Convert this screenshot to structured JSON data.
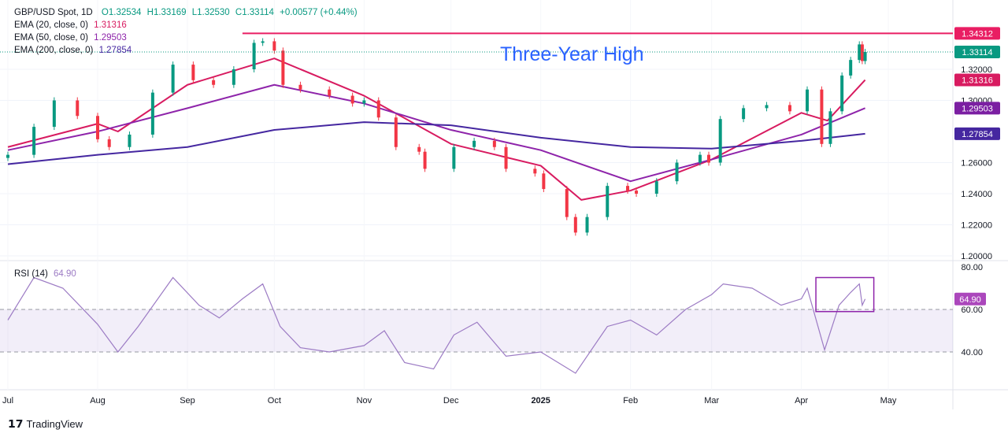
{
  "header": {
    "symbol": "GBP/USD Spot, 1D",
    "open": "O1.32534",
    "high": "H1.33169",
    "low": "L1.32530",
    "close": "C1.33114",
    "change": "+0.00577 (+0.44%)",
    "ema20_label": "EMA (20, close, 0)",
    "ema20_value": "1.31316",
    "ema50_label": "EMA (50, close, 0)",
    "ema50_value": "1.29503",
    "ema200_label": "EMA (200, close, 0)",
    "ema200_value": "1.27854",
    "rsi_label": "RSI (14)",
    "rsi_value": "64.90"
  },
  "annotation": "Three-Year High",
  "footer": {
    "brand": "TradingView"
  },
  "colors": {
    "up": "#089981",
    "down": "#f23645",
    "ema20": "#d81b60",
    "ema50": "#8e24aa",
    "ema200": "#4527a0",
    "resistance": "#e91e63",
    "annotation": "#2962ff",
    "rsi": "#9c7bc4"
  },
  "chart_data": [
    {
      "type": "candlestick",
      "title": "GBP/USD Spot, 1D",
      "ylim": [
        1.195,
        1.35
      ],
      "xlim": [
        "2024-07-01",
        "2025-05-01"
      ],
      "y_ticks": [
        "1.20000",
        "1.22000",
        "1.24000",
        "1.26000",
        "1.30000",
        "1.32000"
      ],
      "x_ticks": [
        {
          "date": "2024-07-01",
          "label": "Jul"
        },
        {
          "date": "2024-08-01",
          "label": "Aug"
        },
        {
          "date": "2024-09-01",
          "label": "Sep"
        },
        {
          "date": "2024-10-01",
          "label": "Oct"
        },
        {
          "date": "2024-11-01",
          "label": "Nov"
        },
        {
          "date": "2024-12-01",
          "label": "Dec"
        },
        {
          "date": "2025-01-01",
          "label": "2025"
        },
        {
          "date": "2025-02-01",
          "label": "Feb"
        },
        {
          "date": "2025-03-01",
          "label": "Mar"
        },
        {
          "date": "2025-04-01",
          "label": "Apr"
        },
        {
          "date": "2025-05-01",
          "label": "May"
        }
      ],
      "closes": [
        [
          "2024-07-01",
          1.265
        ],
        [
          "2024-07-10",
          1.283
        ],
        [
          "2024-07-17",
          1.3
        ],
        [
          "2024-07-25",
          1.29
        ],
        [
          "2024-08-01",
          1.275
        ],
        [
          "2024-08-05",
          1.27
        ],
        [
          "2024-08-12",
          1.278
        ],
        [
          "2024-08-20",
          1.305
        ],
        [
          "2024-08-27",
          1.323
        ],
        [
          "2024-09-03",
          1.313
        ],
        [
          "2024-09-10",
          1.31
        ],
        [
          "2024-09-17",
          1.32
        ],
        [
          "2024-09-24",
          1.337
        ],
        [
          "2024-09-27",
          1.338
        ],
        [
          "2024-10-01",
          1.332
        ],
        [
          "2024-10-04",
          1.31
        ],
        [
          "2024-10-10",
          1.307
        ],
        [
          "2024-10-20",
          1.303
        ],
        [
          "2024-10-28",
          1.298
        ],
        [
          "2024-11-01",
          1.3
        ],
        [
          "2024-11-06",
          1.289
        ],
        [
          "2024-11-12",
          1.27
        ],
        [
          "2024-11-20",
          1.267
        ],
        [
          "2024-11-22",
          1.256
        ],
        [
          "2024-12-02",
          1.27
        ],
        [
          "2024-12-09",
          1.274
        ],
        [
          "2024-12-16",
          1.27
        ],
        [
          "2024-12-20",
          1.256
        ],
        [
          "2024-12-30",
          1.253
        ],
        [
          "2025-01-02",
          1.243
        ],
        [
          "2025-01-10",
          1.225
        ],
        [
          "2025-01-13",
          1.215
        ],
        [
          "2025-01-17",
          1.225
        ],
        [
          "2025-01-24",
          1.245
        ],
        [
          "2025-01-31",
          1.242
        ],
        [
          "2025-02-03",
          1.24
        ],
        [
          "2025-02-10",
          1.248
        ],
        [
          "2025-02-17",
          1.26
        ],
        [
          "2025-02-25",
          1.265
        ],
        [
          "2025-02-28",
          1.26
        ],
        [
          "2025-03-04",
          1.288
        ],
        [
          "2025-03-12",
          1.295
        ],
        [
          "2025-03-20",
          1.297
        ],
        [
          "2025-03-28",
          1.293
        ],
        [
          "2025-04-03",
          1.307
        ],
        [
          "2025-04-08",
          1.272
        ],
        [
          "2025-04-11",
          1.293
        ],
        [
          "2025-04-15",
          1.316
        ],
        [
          "2025-04-18",
          1.326
        ],
        [
          "2025-04-21",
          1.336
        ],
        [
          "2025-04-22",
          1.3253
        ],
        [
          "2025-04-23",
          1.33114
        ]
      ],
      "series": [
        {
          "name": "EMA (20, close, 0)",
          "points": [
            [
              "2024-07-01",
              1.27
            ],
            [
              "2024-08-01",
              1.285
            ],
            [
              "2024-08-08",
              1.28
            ],
            [
              "2024-09-01",
              1.31
            ],
            [
              "2024-10-01",
              1.327
            ],
            [
              "2024-11-01",
              1.303
            ],
            [
              "2024-12-01",
              1.272
            ],
            [
              "2025-01-01",
              1.258
            ],
            [
              "2025-01-15",
              1.236
            ],
            [
              "2025-02-01",
              1.242
            ],
            [
              "2025-03-01",
              1.262
            ],
            [
              "2025-04-01",
              1.292
            ],
            [
              "2025-04-10",
              1.287
            ],
            [
              "2025-04-23",
              1.31316
            ]
          ]
        },
        {
          "name": "EMA (50, close, 0)",
          "points": [
            [
              "2024-07-01",
              1.268
            ],
            [
              "2024-08-01",
              1.28
            ],
            [
              "2024-09-01",
              1.295
            ],
            [
              "2024-10-01",
              1.31
            ],
            [
              "2024-11-01",
              1.298
            ],
            [
              "2024-12-01",
              1.281
            ],
            [
              "2025-01-01",
              1.268
            ],
            [
              "2025-02-01",
              1.248
            ],
            [
              "2025-03-01",
              1.262
            ],
            [
              "2025-04-01",
              1.278
            ],
            [
              "2025-04-23",
              1.29503
            ]
          ]
        },
        {
          "name": "EMA (200, close, 0)",
          "points": [
            [
              "2024-07-01",
              1.259
            ],
            [
              "2024-08-01",
              1.265
            ],
            [
              "2024-09-01",
              1.27
            ],
            [
              "2024-10-01",
              1.281
            ],
            [
              "2024-11-01",
              1.286
            ],
            [
              "2024-12-01",
              1.284
            ],
            [
              "2025-01-01",
              1.276
            ],
            [
              "2025-02-01",
              1.27
            ],
            [
              "2025-03-01",
              1.269
            ],
            [
              "2025-04-01",
              1.274
            ],
            [
              "2025-04-23",
              1.27854
            ]
          ]
        }
      ],
      "resistance": {
        "value": 1.34312,
        "label": "1.34312",
        "from": "2024-09-20"
      },
      "price_labels": [
        {
          "label": "1.33114",
          "value": 1.33114,
          "color": "#089981"
        },
        {
          "label": "1.31316",
          "value": 1.31316,
          "color": "#d81b60"
        },
        {
          "label": "1.29503",
          "value": 1.29503,
          "color": "#7b1fa2"
        },
        {
          "label": "1.27854",
          "value": 1.27854,
          "color": "#4527a0"
        }
      ]
    },
    {
      "type": "line",
      "title": "RSI (14)",
      "ylim": [
        29,
        85
      ],
      "y_ticks": [
        "40.00",
        "60.00",
        "80.00"
      ],
      "band": [
        40,
        60
      ],
      "current": {
        "value": 64.9,
        "label": "64.90"
      },
      "highlight_box": {
        "from": "2025-04-06",
        "to": "2025-04-26",
        "low": 59,
        "high": 75
      },
      "points": [
        [
          "2024-07-01",
          55
        ],
        [
          "2024-07-10",
          75
        ],
        [
          "2024-07-20",
          70
        ],
        [
          "2024-08-01",
          53
        ],
        [
          "2024-08-08",
          40
        ],
        [
          "2024-08-15",
          52
        ],
        [
          "2024-08-27",
          75
        ],
        [
          "2024-09-05",
          62
        ],
        [
          "2024-09-12",
          56
        ],
        [
          "2024-09-20",
          65
        ],
        [
          "2024-09-27",
          72
        ],
        [
          "2024-10-03",
          52
        ],
        [
          "2024-10-10",
          42
        ],
        [
          "2024-10-20",
          40
        ],
        [
          "2024-11-01",
          43
        ],
        [
          "2024-11-08",
          50
        ],
        [
          "2024-11-15",
          35
        ],
        [
          "2024-11-25",
          32
        ],
        [
          "2024-12-02",
          48
        ],
        [
          "2024-12-10",
          54
        ],
        [
          "2024-12-20",
          38
        ],
        [
          "2025-01-01",
          40
        ],
        [
          "2025-01-13",
          30
        ],
        [
          "2025-01-24",
          52
        ],
        [
          "2025-02-01",
          55
        ],
        [
          "2025-02-10",
          48
        ],
        [
          "2025-02-20",
          60
        ],
        [
          "2025-03-01",
          67
        ],
        [
          "2025-03-05",
          72
        ],
        [
          "2025-03-15",
          70
        ],
        [
          "2025-03-25",
          62
        ],
        [
          "2025-04-01",
          65
        ],
        [
          "2025-04-03",
          70
        ],
        [
          "2025-04-09",
          41
        ],
        [
          "2025-04-14",
          62
        ],
        [
          "2025-04-18",
          68
        ],
        [
          "2025-04-21",
          72
        ],
        [
          "2025-04-22",
          62
        ],
        [
          "2025-04-23",
          64.9
        ]
      ]
    }
  ]
}
